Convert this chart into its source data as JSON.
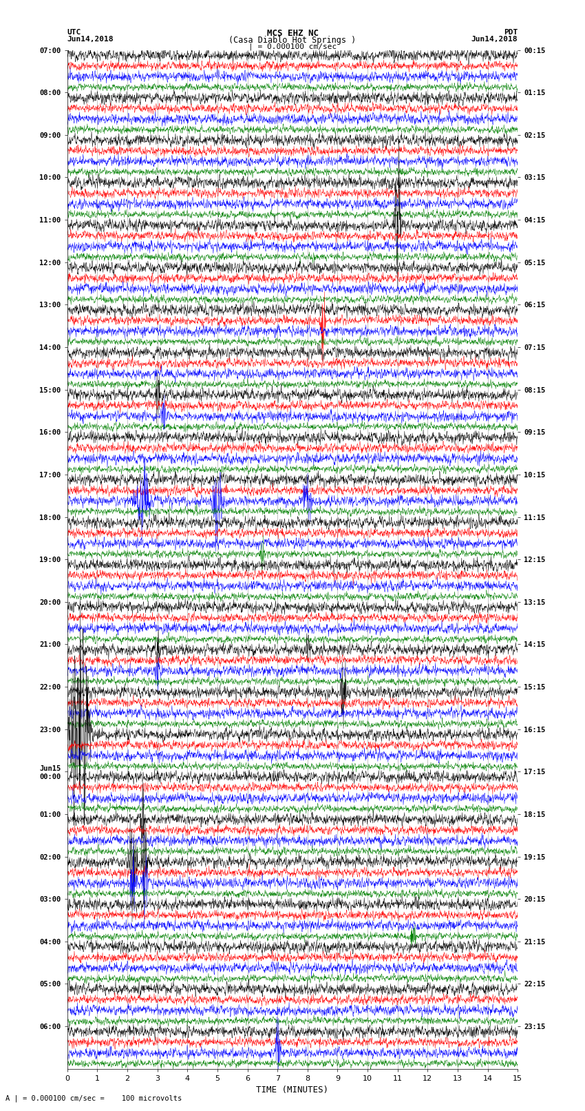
{
  "title_line1": "MCS EHZ NC",
  "title_line2": "(Casa Diablo Hot Springs )",
  "scale_label": "| = 0.000100 cm/sec",
  "footer_label": "A | = 0.000100 cm/sec =    100 microvolts",
  "xlabel": "TIME (MINUTES)",
  "left_timezone": "UTC",
  "left_date": "Jun14,2018",
  "right_timezone": "PDT",
  "right_date": "Jun14,2018",
  "utc_hour_labels": [
    "07:00",
    "08:00",
    "09:00",
    "10:00",
    "11:00",
    "12:00",
    "13:00",
    "14:00",
    "15:00",
    "16:00",
    "17:00",
    "18:00",
    "19:00",
    "20:00",
    "21:00",
    "22:00",
    "23:00",
    "Jun15\n00:00",
    "01:00",
    "02:00",
    "03:00",
    "04:00",
    "05:00",
    "06:00"
  ],
  "pdt_hour_labels": [
    "00:15",
    "01:15",
    "02:15",
    "03:15",
    "04:15",
    "05:15",
    "06:15",
    "07:15",
    "08:15",
    "09:15",
    "10:15",
    "11:15",
    "12:15",
    "13:15",
    "14:15",
    "15:15",
    "16:15",
    "17:15",
    "18:15",
    "19:15",
    "20:15",
    "21:15",
    "22:15",
    "23:15"
  ],
  "colors": [
    "black",
    "red",
    "blue",
    "green"
  ],
  "bg_color": "white",
  "grid_color": "#888888",
  "fig_width": 8.5,
  "fig_height": 16.13,
  "dpi": 100,
  "num_hours": 24,
  "traces_per_hour": 4,
  "x_ticks": [
    0,
    1,
    2,
    3,
    4,
    5,
    6,
    7,
    8,
    9,
    10,
    11,
    12,
    13,
    14,
    15
  ],
  "vertical_grid_minutes": [
    1,
    2,
    3,
    4,
    5,
    6,
    7,
    8,
    9,
    10,
    11,
    12,
    13,
    14
  ]
}
